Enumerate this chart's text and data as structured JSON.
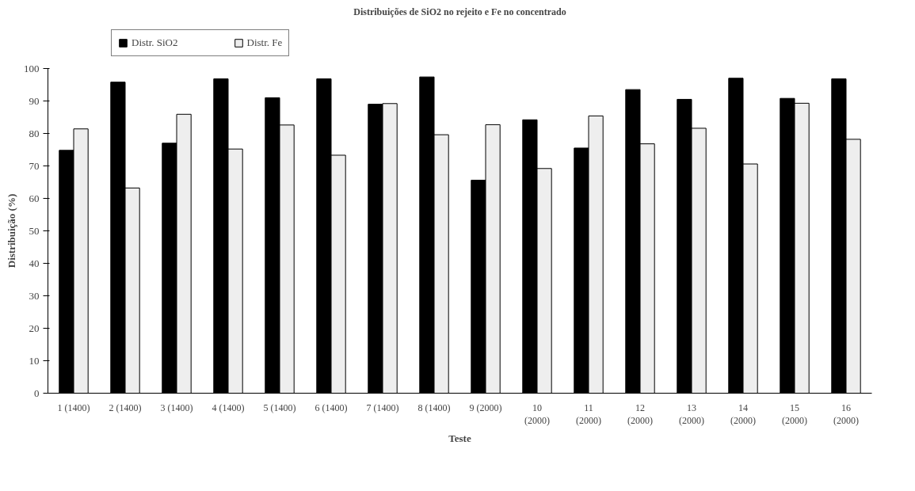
{
  "chart_data": {
    "type": "bar",
    "title": "Distribuições de SiO2 no rejeito e Fe no concentrado",
    "xlabel": "Teste",
    "ylabel": "Distribuição (%)",
    "categories": [
      "1 (1400)",
      "2 (1400)",
      "3 (1400)",
      "4 (1400)",
      "5 (1400)",
      "6 (1400)",
      "7 (1400)",
      "8 (1400)",
      "9 (2000)",
      "10\n(2000)",
      "11\n(2000)",
      "12\n(2000)",
      "13\n(2000)",
      "14\n(2000)",
      "15\n(2000)",
      "16\n(2000)"
    ],
    "series": [
      {
        "name": "Distr. SiO2",
        "color": "#000000",
        "values": [
          74.8,
          95.8,
          77,
          96.8,
          91,
          96.8,
          89,
          97.4,
          65.6,
          84.2,
          75.5,
          93.5,
          90.5,
          97,
          90.8,
          96.8
        ]
      },
      {
        "name": "Distr. Fe",
        "color": "#eeeeee",
        "values": [
          81.4,
          63.2,
          85.9,
          75.2,
          82.6,
          73.3,
          89.2,
          79.6,
          82.7,
          69.2,
          85.4,
          76.8,
          81.6,
          70.6,
          89.3,
          78.2
        ]
      }
    ],
    "ylim": [
      0,
      100
    ],
    "yticks": [
      0,
      10,
      20,
      30,
      40,
      50,
      60,
      70,
      80,
      90,
      100
    ],
    "grid": false,
    "legend": "top left"
  }
}
